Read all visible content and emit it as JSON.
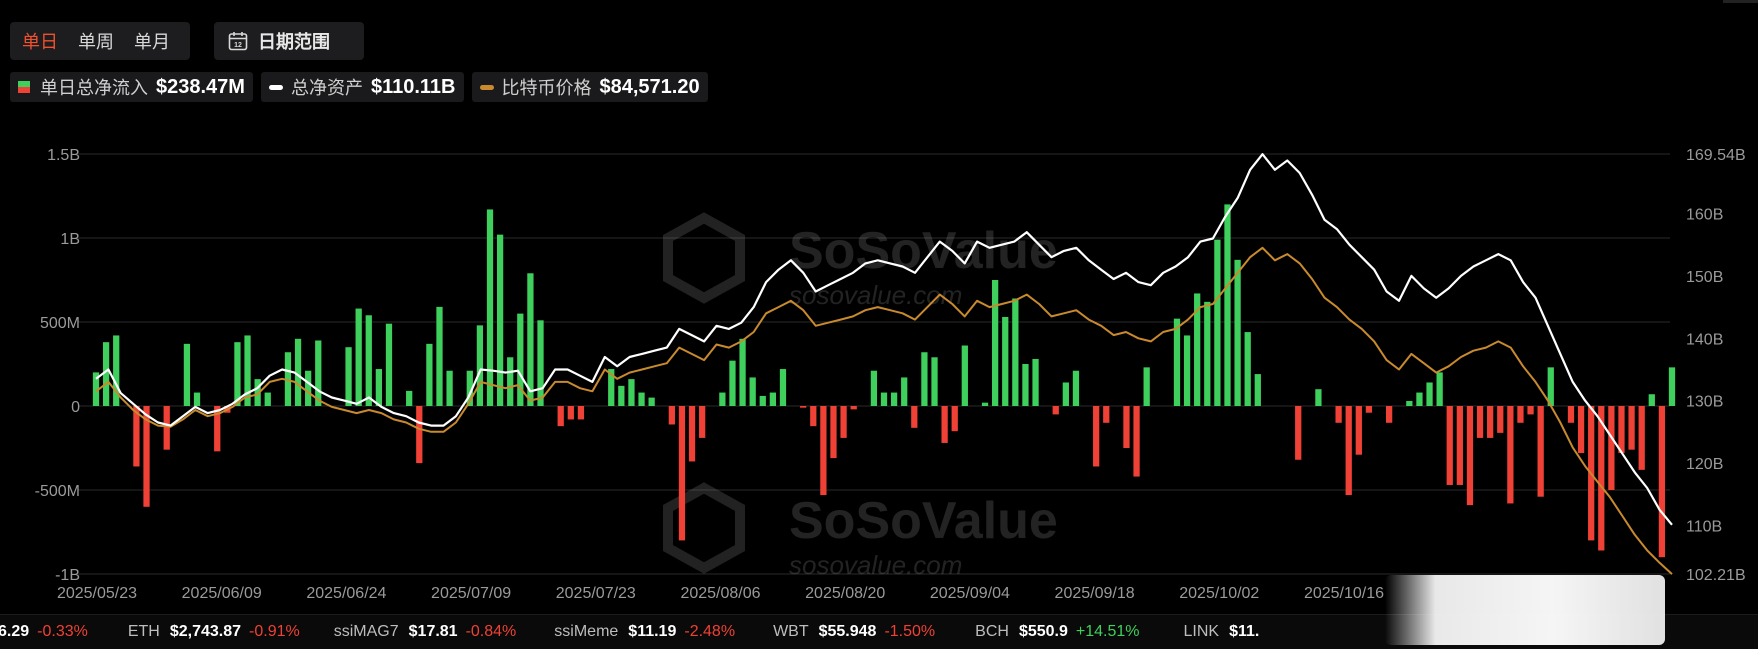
{
  "tabs": {
    "items": [
      {
        "label": "单日",
        "active": true
      },
      {
        "label": "单周",
        "active": false
      },
      {
        "label": "单月",
        "active": false
      }
    ],
    "date_range_label": "日期范围",
    "calendar_day": "12"
  },
  "legend": [
    {
      "label": "单日总净流入",
      "value": "$238.47M"
    },
    {
      "label": "总净资产",
      "value": "$110.11B"
    },
    {
      "label": "比特币价格",
      "value": "$84,571.20"
    }
  ],
  "colors": {
    "positive_bar": "#3ecf5c",
    "negative_bar": "#ef4135",
    "assets_line": "#ffffff",
    "price_line": "#c98a2e",
    "grid": "#2a2a2a",
    "active_tab": "#f0512e"
  },
  "watermark": {
    "brand": "SoSoValue",
    "url": "sosovalue.com"
  },
  "chart_data": {
    "type": "bar",
    "x_tick_labels": [
      "2025/05/23",
      "2025/06/09",
      "2025/06/24",
      "2025/07/09",
      "2025/07/23",
      "2025/08/06",
      "2025/08/20",
      "2025/09/04",
      "2025/09/18",
      "2025/10/02",
      "2025/10/16"
    ],
    "y_left": {
      "ticks": [
        "1.5B",
        "1B",
        "500M",
        "0",
        "-500M",
        "-1B"
      ],
      "range_millions": [
        -1000,
        1500
      ]
    },
    "y_right": {
      "ticks": [
        "169.54B",
        "160B",
        "150B",
        "140B",
        "130B",
        "120B",
        "110B",
        "102.21B"
      ],
      "range_billions": [
        102.21,
        169.54
      ]
    },
    "series": [
      {
        "axis": "left",
        "unit": "M",
        "values": [
          200,
          380,
          420,
          0,
          -360,
          -600,
          0,
          -260,
          0,
          370,
          80,
          0,
          -270,
          -40,
          380,
          420,
          160,
          80,
          0,
          320,
          400,
          210,
          390,
          0,
          0,
          350,
          580,
          540,
          220,
          490,
          0,
          90,
          -340,
          370,
          590,
          210,
          0,
          210,
          480,
          1170,
          1020,
          290,
          550,
          790,
          510,
          0,
          -120,
          -80,
          -80,
          0,
          0,
          220,
          120,
          160,
          80,
          50,
          0,
          -110,
          -800,
          -330,
          -190,
          0,
          80,
          270,
          400,
          170,
          60,
          80,
          220,
          0,
          -10,
          -120,
          -530,
          -310,
          -190,
          -20,
          0,
          210,
          80,
          80,
          170,
          -130,
          320,
          290,
          -220,
          -150,
          360,
          0,
          20,
          750,
          530,
          640,
          250,
          280,
          0,
          -50,
          140,
          210,
          0,
          -360,
          -100,
          0,
          -250,
          -420,
          230,
          0,
          0,
          520,
          420,
          670,
          620,
          990,
          1200,
          870,
          440,
          190,
          0,
          0,
          0,
          -320,
          0,
          100,
          0,
          -100,
          -530,
          -290,
          -40,
          0,
          -100,
          0,
          30,
          80,
          140,
          200,
          -470,
          -470,
          -590,
          -190,
          -190,
          -160,
          -580,
          -100,
          -50,
          -540,
          230,
          0,
          -100,
          -280,
          -800,
          -860,
          -500,
          -280,
          -260,
          -380,
          70,
          -900,
          230
        ]
      },
      {
        "axis": "right",
        "unit": "B",
        "values": [
          133.5,
          135.0,
          131.2,
          129.5,
          127.8,
          126.5,
          126.0,
          127.5,
          129.0,
          128.0,
          128.5,
          129.5,
          131.0,
          132.0,
          134.0,
          135.0,
          134.5,
          133.0,
          131.5,
          130.5,
          130.0,
          129.5,
          130.5,
          129.0,
          128.0,
          127.5,
          126.5,
          126.0,
          126.0,
          127.5,
          130.5,
          135.0,
          134.8,
          134.5,
          134.8,
          131.5,
          132.0,
          135.0,
          135.0,
          134.0,
          133.0,
          137.0,
          135.5,
          137.0,
          137.5,
          138.0,
          138.5,
          141.5,
          140.5,
          139.5,
          142.0,
          141.5,
          142.5,
          145.0,
          149.0,
          151.0,
          152.5,
          150.5,
          147.5,
          148.5,
          149.5,
          150.5,
          152.0,
          152.5,
          152.0,
          151.5,
          150.5,
          153.0,
          155.5,
          154.0,
          152.0,
          155.5,
          154.5,
          155.0,
          155.5,
          157.0,
          155.0,
          153.0,
          154.0,
          154.5,
          152.5,
          151.0,
          149.5,
          150.5,
          149.0,
          148.5,
          150.5,
          151.5,
          153.0,
          155.5,
          156.0,
          159.5,
          162.5,
          167.0,
          169.5,
          167.0,
          168.5,
          166.5,
          163.0,
          159.0,
          157.5,
          155.0,
          153.0,
          151.0,
          147.5,
          146.0,
          150.0,
          148.0,
          146.5,
          148.0,
          150.0,
          151.5,
          152.5,
          153.5,
          152.5,
          149.0,
          146.5,
          142.0,
          137.5,
          133.0,
          130.0,
          127.5,
          124.5,
          121.5,
          118.5,
          116.0,
          112.5,
          110.1
        ]
      },
      {
        "axis": "right",
        "unit": "B",
        "values": [
          131.5,
          133.0,
          130.5,
          128.5,
          127.0,
          126.0,
          125.8,
          127.0,
          128.5,
          127.5,
          128.0,
          129.0,
          130.5,
          131.0,
          133.0,
          133.5,
          133.0,
          131.5,
          130.0,
          129.0,
          128.5,
          128.0,
          128.5,
          128.0,
          127.0,
          126.5,
          125.5,
          125.0,
          125.0,
          126.5,
          129.5,
          133.0,
          132.5,
          132.0,
          132.5,
          130.0,
          130.5,
          133.0,
          133.0,
          132.0,
          131.5,
          135.0,
          133.5,
          134.5,
          135.0,
          135.5,
          136.0,
          138.5,
          137.5,
          136.5,
          139.0,
          138.5,
          139.5,
          141.0,
          144.0,
          145.0,
          146.0,
          144.5,
          142.0,
          142.5,
          143.0,
          143.5,
          144.5,
          145.0,
          144.5,
          144.0,
          143.0,
          145.0,
          147.0,
          145.5,
          143.5,
          146.0,
          145.0,
          145.5,
          146.0,
          147.0,
          145.5,
          143.5,
          144.0,
          144.5,
          143.0,
          142.0,
          140.5,
          141.0,
          140.0,
          139.5,
          141.0,
          141.5,
          143.0,
          145.0,
          145.5,
          148.0,
          150.5,
          153.0,
          154.5,
          152.5,
          153.5,
          152.0,
          149.5,
          146.5,
          145.0,
          143.0,
          141.5,
          139.5,
          136.5,
          135.0,
          137.5,
          136.0,
          134.5,
          135.5,
          137.0,
          138.0,
          138.5,
          139.5,
          138.5,
          135.5,
          133.0,
          130.0,
          126.5,
          122.5,
          119.5,
          117.0,
          114.5,
          111.5,
          108.5,
          106.0,
          104.0,
          102.2
        ]
      }
    ]
  },
  "ticker": [
    {
      "name": "",
      "price": "6.29",
      "change": "-0.33%",
      "dir": "neg"
    },
    {
      "name": "ETH",
      "price": "$2,743.87",
      "change": "-0.91%",
      "dir": "neg"
    },
    {
      "name": "ssiMAG7",
      "price": "$17.81",
      "change": "-0.84%",
      "dir": "neg"
    },
    {
      "name": "ssiMeme",
      "price": "$11.19",
      "change": "-2.48%",
      "dir": "neg"
    },
    {
      "name": "WBT",
      "price": "$55.948",
      "change": "-1.50%",
      "dir": "neg"
    },
    {
      "name": "BCH",
      "price": "$550.9",
      "change": "+14.51%",
      "dir": "pos"
    },
    {
      "name": "LINK",
      "price": "$11.",
      "change": "",
      "dir": "neg"
    }
  ]
}
